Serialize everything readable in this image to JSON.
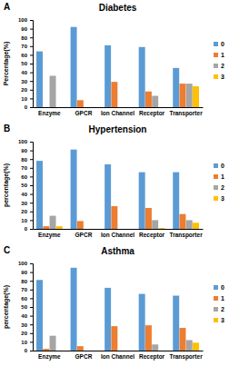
{
  "chart_data": [
    {
      "type": "bar",
      "panel": "A",
      "title": "Diabetes",
      "y_label": "Percentage(%)",
      "categories": [
        "Enzyme",
        "GPCR",
        "Ion Channel",
        "Receptor",
        "Transporter"
      ],
      "series": [
        {
          "name": "0",
          "color": "#5b9bd5",
          "values": [
            64,
            92,
            71,
            69,
            45
          ]
        },
        {
          "name": "1",
          "color": "#ed7d31",
          "values": [
            0,
            8,
            29,
            18,
            27
          ]
        },
        {
          "name": "2",
          "color": "#a5a5a5",
          "values": [
            36,
            0,
            0,
            13,
            27
          ]
        },
        {
          "name": "3",
          "color": "#ffc000",
          "values": [
            0,
            0,
            0,
            0,
            24
          ]
        }
      ],
      "ylim": [
        0,
        100
      ],
      "yticks": [
        0,
        10,
        20,
        30,
        40,
        50,
        60,
        70,
        80,
        90,
        100
      ],
      "legend": "right"
    },
    {
      "type": "bar",
      "panel": "B",
      "title": "Hypertension",
      "y_label": "percentage(%)",
      "categories": [
        "Enzyme",
        "GPCR",
        "Ion Channel",
        "Receptor",
        "Transporter"
      ],
      "series": [
        {
          "name": "0",
          "color": "#5b9bd5",
          "values": [
            78,
            91,
            74,
            65,
            65
          ]
        },
        {
          "name": "1",
          "color": "#ed7d31",
          "values": [
            3,
            9,
            26,
            24,
            17
          ]
        },
        {
          "name": "2",
          "color": "#a5a5a5",
          "values": [
            15,
            0,
            0,
            10,
            10
          ]
        },
        {
          "name": "3",
          "color": "#ffc000",
          "values": [
            3,
            0,
            0,
            1,
            7
          ]
        }
      ],
      "ylim": [
        0,
        100
      ],
      "yticks": [
        0,
        10,
        20,
        30,
        40,
        50,
        60,
        70,
        80,
        90,
        100
      ],
      "legend": "right"
    },
    {
      "type": "bar",
      "panel": "C",
      "title": "Asthma",
      "y_label": "percentage(%)",
      "categories": [
        "Enzyme",
        "GPCR",
        "Ion Channel",
        "Receptor",
        "Transporter"
      ],
      "series": [
        {
          "name": "0",
          "color": "#5b9bd5",
          "values": [
            81,
            95,
            72,
            65,
            63
          ]
        },
        {
          "name": "1",
          "color": "#ed7d31",
          "values": [
            2,
            5,
            28,
            29,
            26
          ]
        },
        {
          "name": "2",
          "color": "#a5a5a5",
          "values": [
            17,
            0,
            0,
            7,
            12
          ]
        },
        {
          "name": "3",
          "color": "#ffc000",
          "values": [
            0,
            0,
            0,
            0,
            9
          ]
        }
      ],
      "ylim": [
        0,
        100
      ],
      "yticks": [
        0,
        10,
        20,
        30,
        40,
        50,
        60,
        70,
        80,
        90,
        100
      ],
      "legend": "right"
    }
  ]
}
